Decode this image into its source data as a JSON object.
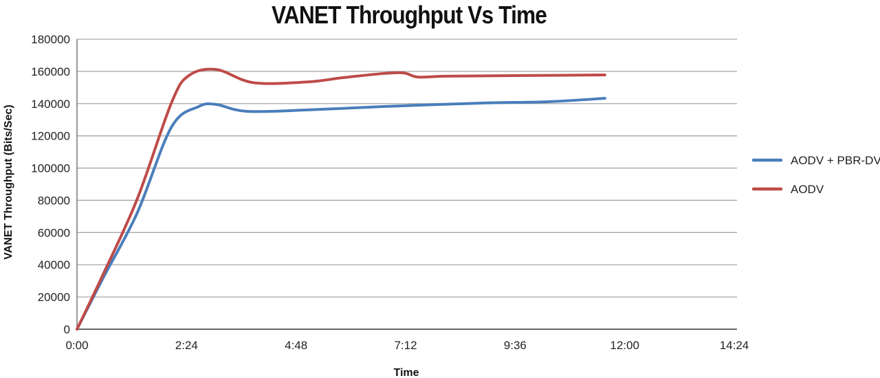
{
  "chart_data": {
    "type": "line",
    "title": "VANET Throughput Vs Time",
    "xlabel": "Time",
    "ylabel": "VANET Throughput (Bits/Sec)",
    "x_ticks": [
      "0:00",
      "2:24",
      "4:48",
      "7:12",
      "9:36",
      "12:00",
      "14:24"
    ],
    "x_range_seconds": [
      0,
      864
    ],
    "y_ticks": [
      0,
      20000,
      40000,
      60000,
      80000,
      100000,
      120000,
      140000,
      160000,
      180000
    ],
    "ylim": [
      0,
      180000
    ],
    "grid": "horizontal",
    "legend_position": "right",
    "series": [
      {
        "name": "AODV + PBR-DV",
        "color": "#4a7ebb",
        "x_seconds": [
          0,
          34,
          79,
          124,
          160,
          183,
          223,
          304,
          403,
          529,
          619,
          694
        ],
        "values": [
          0,
          31500,
          72000,
          125300,
          138200,
          139500,
          135200,
          136100,
          138200,
          140300,
          141200,
          143300
        ]
      },
      {
        "name": "AODV",
        "color": "#be4b48",
        "x_seconds": [
          0,
          34,
          79,
          124,
          147,
          183,
          232,
          304,
          349,
          403,
          430,
          448,
          484,
          574,
          694
        ],
        "values": [
          0,
          33700,
          80600,
          140300,
          157400,
          161200,
          153000,
          153500,
          156100,
          158700,
          159000,
          156500,
          157000,
          157400,
          157800
        ]
      }
    ]
  }
}
